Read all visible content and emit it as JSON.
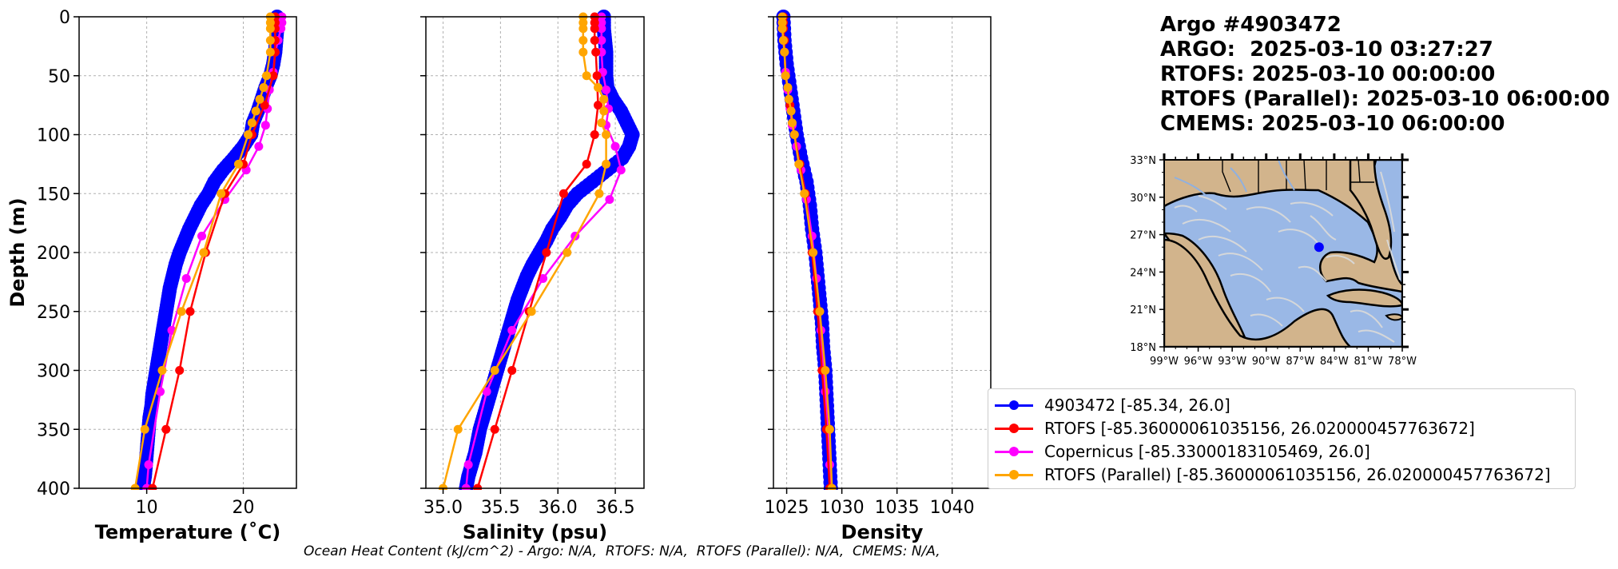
{
  "info": {
    "title": "Argo #4903472",
    "argo_time": "ARGO:  2025-03-10 03:27:27",
    "rtofs_time": "RTOFS: 2025-03-10 00:00:00",
    "rtofs_parallel_time": "RTOFS (Parallel): 2025-03-10 06:00:00",
    "cmems_time": "CMEMS: 2025-03-10 06:00:00"
  },
  "footer": {
    "ohc": "Ocean Heat Content (kJ/cm^2) - Argo: N/A,  RTOFS: N/A,  RTOFS (Parallel): N/A,  CMEMS: N/A,"
  },
  "legend": [
    {
      "label": "4903472 [-85.34, 26.0]",
      "color": "#0000ff"
    },
    {
      "label": "RTOFS [-85.36000061035156, 26.020000457763672]",
      "color": "#ff0000"
    },
    {
      "label": "Copernicus [-85.33000183105469, 26.0]",
      "color": "#ff00ff"
    },
    {
      "label": "RTOFS (Parallel) [-85.36000061035156, 26.020000457763672]",
      "color": "#ffa500"
    }
  ],
  "colors": {
    "argo": "#0000ff",
    "rtofs": "#ff0000",
    "copernicus": "#ff00ff",
    "parallel": "#ffa500",
    "land": "#d2b48c",
    "ocean": "#9ab8e6",
    "streams": "#d9d9d9",
    "rivers": "#8fb0e0"
  },
  "chart_data": [
    {
      "type": "line",
      "ylabel": "Depth (m)",
      "xlabel": "Temperature (˚C)",
      "xlim": [
        3,
        25.5
      ],
      "ylim": [
        400,
        0
      ],
      "xticks": [
        10,
        20
      ],
      "yticks": [
        0,
        50,
        100,
        150,
        200,
        250,
        300,
        350,
        400
      ],
      "grid": true,
      "series": [
        {
          "name": "argo",
          "depth": [
            0,
            10,
            20,
            30,
            40,
            50,
            60,
            70,
            80,
            90,
            100,
            110,
            120,
            130,
            140,
            150,
            160,
            170,
            180,
            190,
            200,
            210,
            220,
            230,
            240,
            250,
            260,
            270,
            280,
            290,
            300,
            310,
            320,
            330,
            340,
            350,
            360,
            370,
            380,
            390,
            400
          ],
          "x": [
            23.5,
            23.5,
            23.4,
            23.3,
            23.1,
            22.8,
            22.3,
            21.9,
            21.5,
            21.0,
            20.8,
            20.0,
            19.0,
            17.9,
            17.0,
            16.4,
            15.6,
            15.0,
            14.4,
            13.9,
            13.4,
            13.0,
            12.7,
            12.4,
            12.2,
            12.0,
            11.8,
            11.6,
            11.4,
            11.2,
            11.0,
            10.8,
            10.6,
            10.5,
            10.3,
            10.2,
            10.1,
            10.0,
            9.9,
            9.8,
            9.6
          ]
        },
        {
          "name": "rtofs",
          "depth": [
            0,
            5,
            10,
            20,
            30,
            50,
            75,
            100,
            125,
            150,
            200,
            250,
            300,
            350,
            400
          ],
          "x": [
            23.3,
            23.3,
            23.3,
            23.3,
            23.3,
            23.1,
            22.2,
            20.9,
            20.0,
            18.1,
            16.1,
            14.5,
            13.4,
            12.0,
            10.6
          ]
        },
        {
          "name": "copernicus",
          "depth": [
            0,
            5,
            10,
            20,
            30,
            47,
            62,
            78,
            92,
            110,
            130,
            155,
            186,
            222,
            266,
            318,
            380,
            400
          ],
          "x": [
            24.0,
            24.0,
            23.9,
            23.6,
            23.3,
            23.1,
            22.7,
            22.5,
            22.3,
            21.6,
            20.3,
            18.1,
            15.7,
            14.1,
            12.6,
            11.4,
            10.2,
            10.0
          ]
        },
        {
          "name": "parallel",
          "depth": [
            0,
            5,
            10,
            20,
            30,
            50,
            60,
            70,
            80,
            90,
            100,
            125,
            150,
            200,
            250,
            300,
            350,
            400
          ],
          "x": [
            22.8,
            22.8,
            22.8,
            22.8,
            22.8,
            22.4,
            22.1,
            21.7,
            21.3,
            20.9,
            20.5,
            19.5,
            17.7,
            15.9,
            13.6,
            11.6,
            9.8,
            8.8
          ]
        }
      ]
    },
    {
      "type": "line",
      "xlabel": "Salinity (psu)",
      "xlim": [
        34.85,
        36.75
      ],
      "ylim": [
        400,
        0
      ],
      "xticks": [
        35.0,
        35.5,
        36.0,
        36.5
      ],
      "xtick_labels": [
        "35.0",
        "35.5",
        "36.0",
        "36.5"
      ],
      "grid": true,
      "series": [
        {
          "name": "argo",
          "depth": [
            0,
            10,
            20,
            30,
            40,
            50,
            60,
            70,
            80,
            90,
            100,
            110,
            120,
            130,
            140,
            150,
            160,
            170,
            180,
            190,
            200,
            210,
            220,
            230,
            240,
            250,
            260,
            270,
            280,
            290,
            300,
            310,
            320,
            330,
            340,
            350,
            360,
            370,
            380,
            390,
            400
          ],
          "x": [
            36.4,
            36.4,
            36.41,
            36.42,
            36.42,
            36.42,
            36.43,
            36.48,
            36.55,
            36.6,
            36.65,
            36.62,
            36.56,
            36.43,
            36.3,
            36.17,
            36.08,
            36.02,
            35.95,
            35.9,
            35.84,
            35.78,
            35.73,
            35.69,
            35.65,
            35.62,
            35.59,
            35.56,
            35.53,
            35.5,
            35.47,
            35.44,
            35.41,
            35.38,
            35.35,
            35.32,
            35.3,
            35.28,
            35.25,
            35.22,
            35.2
          ]
        },
        {
          "name": "rtofs",
          "depth": [
            0,
            5,
            10,
            20,
            30,
            50,
            75,
            100,
            125,
            150,
            200,
            250,
            300,
            350,
            400
          ],
          "x": [
            36.32,
            36.32,
            36.32,
            36.32,
            36.33,
            36.34,
            36.35,
            36.32,
            36.25,
            36.05,
            35.9,
            35.75,
            35.6,
            35.45,
            35.3
          ]
        },
        {
          "name": "copernicus",
          "depth": [
            0,
            5,
            10,
            20,
            30,
            47,
            62,
            78,
            92,
            110,
            130,
            155,
            186,
            222,
            266,
            318,
            380,
            400
          ],
          "x": [
            36.38,
            36.38,
            36.38,
            36.38,
            36.38,
            36.39,
            36.42,
            36.44,
            36.42,
            36.5,
            36.55,
            36.45,
            36.15,
            35.87,
            35.6,
            35.38,
            35.22,
            35.2
          ]
        },
        {
          "name": "parallel",
          "depth": [
            0,
            5,
            10,
            20,
            30,
            50,
            60,
            70,
            80,
            90,
            100,
            125,
            150,
            200,
            250,
            300,
            350,
            400
          ],
          "x": [
            36.22,
            36.22,
            36.22,
            36.22,
            36.22,
            36.25,
            36.35,
            36.4,
            36.4,
            36.38,
            36.42,
            36.42,
            36.36,
            36.08,
            35.77,
            35.45,
            35.13,
            35.0
          ]
        }
      ]
    },
    {
      "type": "line",
      "xlabel": "Density",
      "xlim": [
        1023.8,
        1043.5
      ],
      "ylim": [
        400,
        0
      ],
      "xticks": [
        1025,
        1030,
        1035,
        1040
      ],
      "grid": true,
      "series": [
        {
          "name": "argo",
          "depth": [
            0,
            20,
            40,
            60,
            80,
            100,
            120,
            140,
            160,
            180,
            200,
            220,
            240,
            260,
            280,
            300,
            320,
            340,
            360,
            380,
            400
          ],
          "x": [
            1024.7,
            1024.8,
            1025.0,
            1025.3,
            1025.6,
            1025.9,
            1026.3,
            1026.8,
            1027.1,
            1027.3,
            1027.6,
            1027.8,
            1028.0,
            1028.2,
            1028.3,
            1028.5,
            1028.6,
            1028.7,
            1028.8,
            1028.9,
            1029.0
          ]
        },
        {
          "name": "rtofs",
          "depth": [
            0,
            5,
            10,
            20,
            30,
            50,
            75,
            100,
            125,
            150,
            200,
            250,
            300,
            350,
            400
          ],
          "x": [
            1024.7,
            1024.7,
            1024.7,
            1024.8,
            1024.8,
            1024.9,
            1025.3,
            1025.7,
            1026.2,
            1026.7,
            1027.3,
            1027.8,
            1028.2,
            1028.6,
            1028.9
          ]
        },
        {
          "name": "copernicus",
          "depth": [
            0,
            5,
            10,
            20,
            30,
            47,
            62,
            78,
            92,
            110,
            130,
            155,
            186,
            222,
            266,
            318,
            380,
            400
          ],
          "x": [
            1024.6,
            1024.6,
            1024.6,
            1024.7,
            1024.8,
            1024.9,
            1025.1,
            1025.3,
            1025.5,
            1025.9,
            1026.3,
            1026.8,
            1027.3,
            1027.7,
            1028.1,
            1028.5,
            1028.9,
            1029.0
          ]
        },
        {
          "name": "parallel",
          "depth": [
            0,
            5,
            10,
            20,
            30,
            50,
            60,
            70,
            80,
            90,
            100,
            125,
            150,
            200,
            250,
            300,
            350,
            400
          ],
          "x": [
            1024.6,
            1024.6,
            1024.6,
            1024.7,
            1024.8,
            1024.9,
            1025.1,
            1025.2,
            1025.4,
            1025.5,
            1025.7,
            1026.1,
            1026.6,
            1027.4,
            1028.0,
            1028.5,
            1028.9,
            1029.1
          ]
        }
      ]
    }
  ],
  "map": {
    "lat_labels": [
      "33°N",
      "30°N",
      "27°N",
      "24°N",
      "21°N",
      "18°N"
    ],
    "lon_labels": [
      "99°W",
      "96°W",
      "93°W",
      "90°W",
      "87°W",
      "84°W",
      "81°W",
      "78°W"
    ],
    "marker": {
      "lon": -85.34,
      "lat": 26.0
    },
    "extent": {
      "lon": [
        -99,
        -78
      ],
      "lat": [
        18,
        33
      ]
    }
  }
}
